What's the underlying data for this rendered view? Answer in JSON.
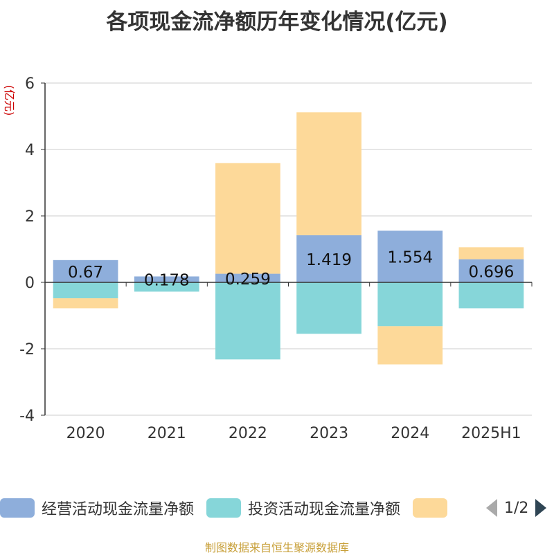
{
  "title": "各项现金流净额历年变化情况(亿元)",
  "source_note": "制图数据来自恒生聚源数据库",
  "legend": {
    "page_indicator": "1/2"
  },
  "colors": {
    "operating": "#8eaedb",
    "investing": "#86d6d9",
    "financing": "#fdd999",
    "axis": "#333333",
    "grid": "#cccccc",
    "ylabel": "#cc0000",
    "nav_prev": "#aaaaaa",
    "nav_next": "#2f4554"
  },
  "chart_data": {
    "type": "bar",
    "stacked": true,
    "title": "各项现金流净额历年变化情况(亿元)",
    "ylabel": "(亿元)",
    "xlabel": "",
    "categories": [
      "2020",
      "2021",
      "2022",
      "2023",
      "2024",
      "2025H1"
    ],
    "ylim": [
      -4,
      6
    ],
    "yticks": [
      -4,
      -2,
      0,
      2,
      4,
      6
    ],
    "grid": true,
    "legend_position": "bottom",
    "series": [
      {
        "name": "经营活动现金流量净额",
        "values": [
          0.67,
          0.178,
          0.259,
          1.419,
          1.554,
          0.696
        ],
        "labels": [
          "0.67",
          "0.178",
          "0.259",
          "1.419",
          "1.554",
          "0.696"
        ]
      },
      {
        "name": "投资活动现金流量净额",
        "values": [
          -0.48,
          -0.28,
          -2.32,
          -1.55,
          -1.32,
          -0.78
        ]
      },
      {
        "name": "",
        "values": [
          -0.3,
          0.0,
          3.33,
          3.7,
          -1.15,
          0.36
        ]
      }
    ]
  }
}
